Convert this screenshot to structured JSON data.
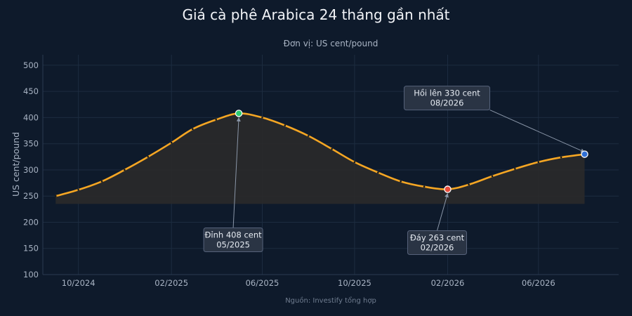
{
  "chart_data": {
    "type": "line",
    "title": "Giá cà phê Arabica 24 tháng gần nhất",
    "subtitle": "Đơn vị: US cent/pound",
    "ylabel": "US cent/pound",
    "xlabel": "",
    "source": "Nguồn: Investify tổng hợp",
    "ylim": [
      100,
      520
    ],
    "yticks": [
      100,
      150,
      200,
      250,
      300,
      350,
      400,
      450,
      500
    ],
    "xlim": [
      "2024-08-15",
      "2026-09-15"
    ],
    "xticks": [
      {
        "date": "2024-10-01",
        "label": "10/2024"
      },
      {
        "date": "2025-02-01",
        "label": "02/2025"
      },
      {
        "date": "2025-06-01",
        "label": "06/2025"
      },
      {
        "date": "2025-10-01",
        "label": "10/2025"
      },
      {
        "date": "2026-02-01",
        "label": "02/2026"
      },
      {
        "date": "2026-06-01",
        "label": "06/2026"
      }
    ],
    "grid": true,
    "fill_baseline": 235,
    "colors": {
      "line": "#f5a623",
      "fill": "#2a2a2a",
      "background": "#0e1a2b",
      "grid": "#1d2c40",
      "peak": "#2ecc71",
      "trough": "#e74c3c",
      "last": "#2f6fd6",
      "annotation_bg": "#2a3444",
      "annotation_border": "#56627a"
    },
    "series": [
      {
        "x": [
          "2024-09-01",
          "2024-10-01",
          "2024-11-01",
          "2024-12-01",
          "2025-01-01",
          "2025-02-01",
          "2025-03-01",
          "2025-04-01",
          "2025-05-01",
          "2025-06-01",
          "2025-07-01",
          "2025-08-01",
          "2025-09-01",
          "2025-10-01",
          "2025-11-01",
          "2025-12-01",
          "2026-01-01",
          "2026-02-01",
          "2026-03-01",
          "2026-04-01",
          "2026-05-01",
          "2026-06-01",
          "2026-07-01",
          "2026-08-01"
        ],
        "y": [
          250,
          262,
          278,
          300,
          325,
          352,
          378,
          396,
          408,
          400,
          385,
          365,
          340,
          315,
          295,
          278,
          268,
          263,
          272,
          288,
          302,
          315,
          324,
          330
        ]
      }
    ],
    "annotations": [
      {
        "kind": "peak",
        "x": "2025-05-01",
        "y": 408,
        "line1": "Đỉnh 408 cent",
        "line2": "05/2025",
        "placement": "below"
      },
      {
        "kind": "trough",
        "x": "2026-02-01",
        "y": 263,
        "line1": "Đáy 263 cent",
        "line2": "02/2026",
        "placement": "below"
      },
      {
        "kind": "last",
        "x": "2026-08-01",
        "y": 330,
        "line1": "Hồi lên 330 cent",
        "line2": "08/2026",
        "placement": "upper-left"
      }
    ]
  }
}
